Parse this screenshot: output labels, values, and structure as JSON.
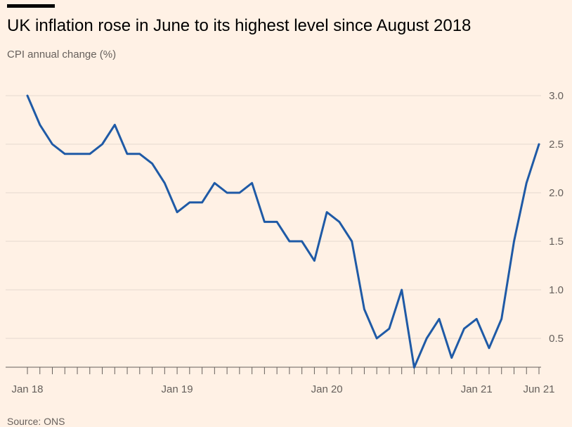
{
  "header": {
    "title": "UK inflation rose in June to its highest level since August 2018",
    "subtitle": "CPI annual change (%)"
  },
  "footer": {
    "source": "Source: ONS"
  },
  "colors": {
    "background": "#fff1e5",
    "line": "#1f5aa6",
    "grid": "#e6d9ce",
    "axis": "#66605c"
  },
  "chart_data": {
    "type": "line",
    "title": "UK inflation rose in June to its highest level since August 2018",
    "ylabel": "CPI annual change (%)",
    "xlabel": "",
    "grid": true,
    "ylim": [
      0.2,
      3.0
    ],
    "y_ticks": [
      0.5,
      1.0,
      1.5,
      2.0,
      2.5,
      3.0
    ],
    "y_tick_labels": [
      "0.5",
      "1.0",
      "1.5",
      "2.0",
      "2.5",
      "3.0"
    ],
    "y_axis_side": "right",
    "x_tick_labels": [
      {
        "label": "Jan 18",
        "index": 0
      },
      {
        "label": "Jan 19",
        "index": 12
      },
      {
        "label": "Jan 20",
        "index": 24
      },
      {
        "label": "Jan 21",
        "index": 36
      },
      {
        "label": "Jun 21",
        "index": 41
      }
    ],
    "x": [
      "2018-01",
      "2018-02",
      "2018-03",
      "2018-04",
      "2018-05",
      "2018-06",
      "2018-07",
      "2018-08",
      "2018-09",
      "2018-10",
      "2018-11",
      "2018-12",
      "2019-01",
      "2019-02",
      "2019-03",
      "2019-04",
      "2019-05",
      "2019-06",
      "2019-07",
      "2019-08",
      "2019-09",
      "2019-10",
      "2019-11",
      "2019-12",
      "2020-01",
      "2020-02",
      "2020-03",
      "2020-04",
      "2020-05",
      "2020-06",
      "2020-07",
      "2020-08",
      "2020-09",
      "2020-10",
      "2020-11",
      "2020-12",
      "2021-01",
      "2021-02",
      "2021-03",
      "2021-04",
      "2021-05",
      "2021-06"
    ],
    "series": [
      {
        "values": [
          3.0,
          2.7,
          2.5,
          2.4,
          2.4,
          2.4,
          2.5,
          2.7,
          2.4,
          2.4,
          2.3,
          2.1,
          1.8,
          1.9,
          1.9,
          2.1,
          2.0,
          2.0,
          2.1,
          1.7,
          1.7,
          1.5,
          1.5,
          1.3,
          1.8,
          1.7,
          1.5,
          0.8,
          0.5,
          0.6,
          1.0,
          0.2,
          0.5,
          0.7,
          0.3,
          0.6,
          0.7,
          0.4,
          0.7,
          1.5,
          2.1,
          2.5
        ],
        "color": "#1f5aa6"
      }
    ]
  }
}
